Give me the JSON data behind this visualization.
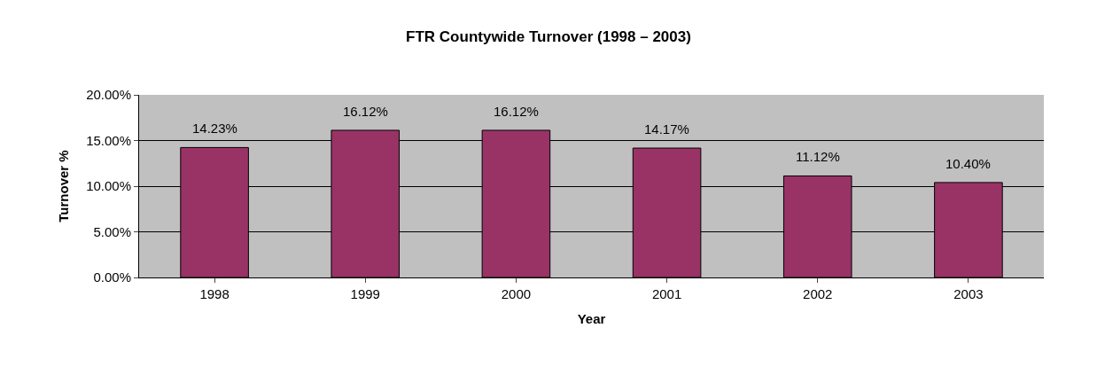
{
  "chart_data": {
    "type": "bar",
    "title": "FTR Countywide Turnover (1998 – 2003)",
    "xlabel": "Year",
    "ylabel": "Turnover %",
    "categories": [
      "1998",
      "1999",
      "2000",
      "2001",
      "2002",
      "2003"
    ],
    "values": [
      14.23,
      16.12,
      16.12,
      14.17,
      11.12,
      10.4
    ],
    "value_labels": [
      "14.23%",
      "16.12%",
      "16.12%",
      "14.17%",
      "11.12%",
      "10.40%"
    ],
    "color": "#993366",
    "ylim": [
      0,
      20
    ],
    "yticks": [
      {
        "value": 0,
        "label": "0.00%"
      },
      {
        "value": 5,
        "label": "5.00%"
      },
      {
        "value": 10,
        "label": "10.00%"
      },
      {
        "value": 15,
        "label": "15.00%"
      },
      {
        "value": 20,
        "label": "20.00%"
      }
    ],
    "grid": "y",
    "legend": false
  }
}
